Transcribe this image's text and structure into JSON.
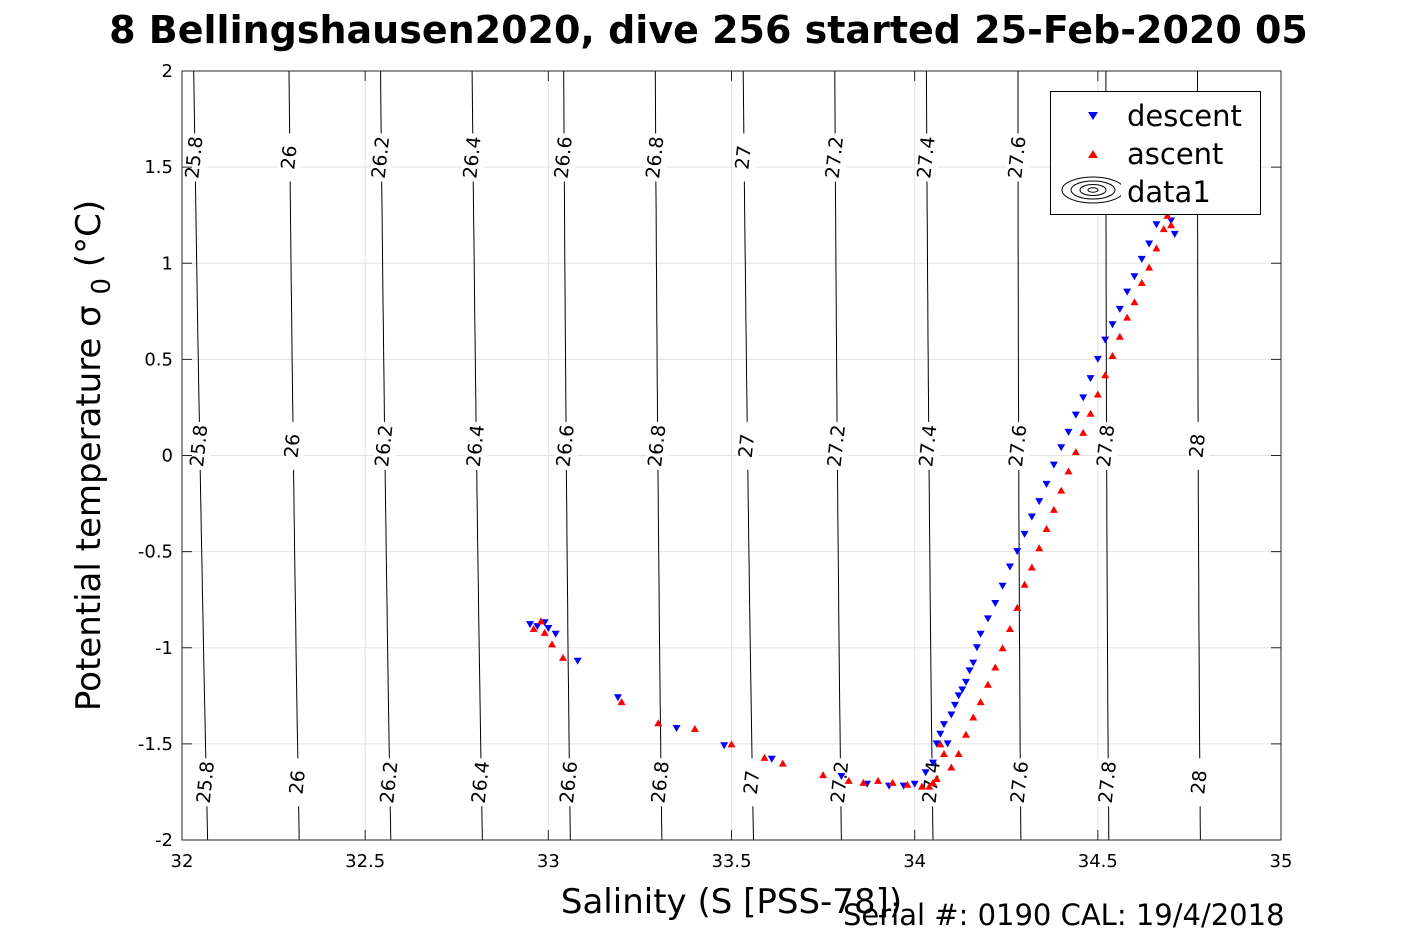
{
  "title": "8 Bellingshausen2020, dive 256 started 25-Feb-2020 05",
  "footer": "Serial #: 0190  CAL: 19/4/2018",
  "colors": {
    "descent": "#0000ff",
    "ascent": "#ff0000",
    "contour": "#000000",
    "grid": "#e3e3e3"
  },
  "chart_data": {
    "type": "scatter",
    "xlabel": "Salinity (S [PSS-78])",
    "ylabel": "Potential temperature σ",
    "ylabel_sub": "0",
    "ylabel_unit": "(°C)",
    "xlim": [
      32,
      35
    ],
    "ylim": [
      -2,
      2
    ],
    "xticks": [
      32,
      32.5,
      33,
      33.5,
      34,
      34.5,
      35
    ],
    "yticks": [
      -2,
      -1.5,
      -1,
      -0.5,
      0,
      0.5,
      1,
      1.5,
      2
    ],
    "xtick_labels": [
      "32",
      "32.5",
      "33",
      "33.5",
      "34",
      "34.5",
      "35"
    ],
    "ytick_labels": [
      "-2",
      "-1.5",
      "-1",
      "-0.5",
      "0",
      "0.5",
      "1",
      "1.5",
      "2"
    ],
    "grid": true,
    "legend": {
      "position": "top-right",
      "entries": [
        "descent",
        "ascent",
        "data1"
      ]
    },
    "contours": {
      "levels": [
        25.8,
        26,
        26.2,
        26.4,
        26.6,
        26.8,
        27,
        27.2,
        27.4,
        27.6,
        27.8,
        28
      ],
      "labels": [
        "25.8",
        "26",
        "26.2",
        "26.4",
        "26.6",
        "26.8",
        "27",
        "27.2",
        "27.4",
        "27.6",
        "27.8",
        "28"
      ],
      "x_at_ymin": [
        32.07,
        32.32,
        32.57,
        32.82,
        33.06,
        33.31,
        33.56,
        33.8,
        34.05,
        34.29,
        34.53,
        34.78
      ],
      "x_at_ymax": [
        32.02,
        32.28,
        32.53,
        32.78,
        33.03,
        33.28,
        33.52,
        33.77,
        34.02,
        34.27,
        34.51,
        34.76
      ],
      "label_y": [
        -1.7,
        0.05,
        1.55
      ]
    },
    "series": [
      {
        "name": "descent",
        "marker": "triangle-down",
        "x": [
          32.95,
          32.97,
          32.99,
          33.0,
          33.02,
          33.08,
          33.19,
          33.35,
          33.48,
          33.61,
          33.8,
          33.87,
          33.93,
          33.97,
          34.0,
          34.03,
          34.05,
          34.06,
          34.07,
          34.08,
          34.09,
          34.1,
          34.11,
          34.12,
          34.13,
          34.14,
          34.15,
          34.16,
          34.17,
          34.18,
          34.2,
          34.22,
          34.24,
          34.26,
          34.28,
          34.3,
          34.32,
          34.34,
          34.36,
          34.38,
          34.4,
          34.42,
          34.44,
          34.46,
          34.48,
          34.5,
          34.52,
          34.54,
          34.56,
          34.58,
          34.6,
          34.62,
          34.64,
          34.66,
          34.68,
          34.7,
          34.71
        ],
        "y": [
          -0.88,
          -0.89,
          -0.87,
          -0.9,
          -0.93,
          -1.07,
          -1.26,
          -1.42,
          -1.51,
          -1.58,
          -1.67,
          -1.71,
          -1.72,
          -1.72,
          -1.71,
          -1.65,
          -1.6,
          -1.5,
          -1.45,
          -1.4,
          -1.5,
          -1.35,
          -1.3,
          -1.25,
          -1.22,
          -1.18,
          -1.12,
          -1.08,
          -1.0,
          -0.93,
          -0.85,
          -0.77,
          -0.68,
          -0.58,
          -0.5,
          -0.41,
          -0.32,
          -0.24,
          -0.15,
          -0.05,
          0.04,
          0.12,
          0.21,
          0.3,
          0.4,
          0.5,
          0.6,
          0.68,
          0.76,
          0.85,
          0.93,
          1.02,
          1.1,
          1.2,
          1.28,
          1.22,
          1.15
        ]
      },
      {
        "name": "ascent",
        "marker": "triangle-up",
        "x": [
          32.96,
          32.98,
          32.99,
          33.01,
          33.04,
          33.2,
          33.3,
          33.4,
          33.5,
          33.59,
          33.64,
          33.75,
          33.82,
          33.86,
          33.9,
          33.94,
          33.98,
          34.02,
          34.04,
          34.05,
          34.06,
          34.07,
          34.08,
          34.1,
          34.12,
          34.14,
          34.16,
          34.18,
          34.2,
          34.22,
          34.24,
          34.26,
          34.28,
          34.3,
          34.32,
          34.34,
          34.36,
          34.38,
          34.4,
          34.42,
          34.44,
          34.46,
          34.48,
          34.5,
          34.52,
          34.54,
          34.56,
          34.58,
          34.6,
          34.62,
          34.64,
          34.66,
          34.68,
          34.69,
          34.7
        ],
        "y": [
          -0.9,
          -0.86,
          -0.92,
          -0.98,
          -1.05,
          -1.28,
          -1.39,
          -1.42,
          -1.5,
          -1.57,
          -1.6,
          -1.66,
          -1.69,
          -1.7,
          -1.69,
          -1.7,
          -1.71,
          -1.72,
          -1.72,
          -1.7,
          -1.68,
          -1.5,
          -1.55,
          -1.62,
          -1.55,
          -1.45,
          -1.36,
          -1.28,
          -1.19,
          -1.1,
          -1.0,
          -0.9,
          -0.79,
          -0.67,
          -0.58,
          -0.48,
          -0.38,
          -0.28,
          -0.18,
          -0.08,
          0.02,
          0.12,
          0.22,
          0.32,
          0.42,
          0.52,
          0.62,
          0.72,
          0.8,
          0.9,
          0.98,
          1.08,
          1.18,
          1.25,
          1.2
        ]
      }
    ]
  }
}
